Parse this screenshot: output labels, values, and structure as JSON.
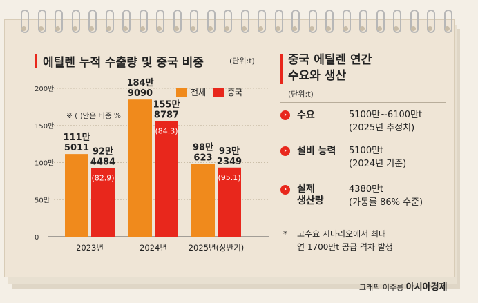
{
  "left_title": "에틸렌 누적 수출량 및 중국 비중",
  "left_unit": "(단위:t)",
  "legend": [
    {
      "label": "전체",
      "color": "#f08a1c"
    },
    {
      "label": "중국",
      "color": "#e8271c"
    }
  ],
  "note": "※ ( )안은 비중 %",
  "chart_data": {
    "type": "bar",
    "title": "에틸렌 누적 수출량 및 중국 비중",
    "categories": [
      "2023년",
      "2024년",
      "2025년(상반기)"
    ],
    "ylim": [
      0,
      2000000
    ],
    "y_ticks": [
      "0",
      "50만",
      "100만",
      "150만",
      "200만"
    ],
    "series": [
      {
        "name": "전체",
        "color": "#f08a1c",
        "values": [
          1115011,
          1849090,
          980623
        ],
        "labels": [
          [
            "111만",
            "5011"
          ],
          [
            "184만",
            "9090"
          ],
          [
            "98만",
            "623"
          ]
        ]
      },
      {
        "name": "중국",
        "color": "#e8271c",
        "values": [
          924484,
          1558787,
          932349
        ],
        "labels": [
          [
            "92만",
            "4484"
          ],
          [
            "155만",
            "8787"
          ],
          [
            "93만",
            "2349"
          ]
        ],
        "share_labels": [
          "(82.9)",
          "(84.3)",
          "(95.1)"
        ]
      }
    ],
    "grid": true
  },
  "right_title_line1": "중국 에틸렌 연간",
  "right_title_line2": "수요와 생산",
  "right_unit": "(단위:t)",
  "rows": [
    {
      "label_lines": [
        "수요"
      ],
      "value_lines": [
        "5100만~6100만t",
        "(2025년 추정치)"
      ]
    },
    {
      "label_lines": [
        "설비 능력"
      ],
      "value_lines": [
        "5100만t",
        "(2024년 기준)"
      ]
    },
    {
      "label_lines": [
        "실제",
        "생산량"
      ],
      "value_lines": [
        "4380만t",
        "(가동률 86% 수준)"
      ]
    }
  ],
  "footnote_mark": "*",
  "footnote_lines": [
    "고수요 시나리오에서 최대",
    "연 1700만t 공급 격차 발생"
  ],
  "credit": "그래픽 이주룡",
  "brand": "아시아경제",
  "icon_name": "chevron-right-icon",
  "accent_color": "#e8271c"
}
